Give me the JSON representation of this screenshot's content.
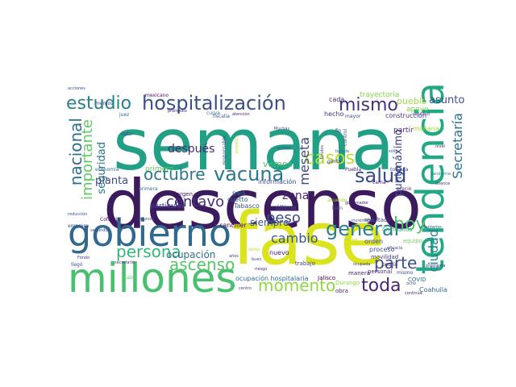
{
  "words": [
    {
      "text": "semana",
      "color": "#21a085"
    },
    {
      "text": "descenso",
      "color": "#3b1b5e"
    },
    {
      "text": "fase",
      "color": "#dbe31e"
    },
    {
      "text": "tendencia",
      "color": "#22a884"
    },
    {
      "text": "gobierno",
      "color": "#2f6a8e"
    },
    {
      "text": "millones",
      "color": "#47c16e"
    },
    {
      "text": "hospitalización",
      "color": "#3b4f8a"
    },
    {
      "text": "estudio",
      "color": "#26818e"
    },
    {
      "text": "mismo",
      "color": "#46327e"
    },
    {
      "text": "general",
      "color": "#27808e"
    },
    {
      "text": "vacuna",
      "color": "#2a788e"
    },
    {
      "text": "salud",
      "color": "#38488b"
    },
    {
      "text": "octubre",
      "color": "#2b758e"
    },
    {
      "text": "casos",
      "color": "#b8de29"
    },
    {
      "text": "hoy",
      "color": "#4ec36b"
    },
    {
      "text": "nacional",
      "color": "#2e6f8e"
    },
    {
      "text": "importante",
      "color": "#5fca61"
    },
    {
      "text": "centavo",
      "color": "#46307c"
    },
    {
      "text": "peso",
      "color": "#3e4a89"
    },
    {
      "text": "parte",
      "color": "#3c4f8a"
    },
    {
      "text": "ascenso",
      "color": "#56c566"
    },
    {
      "text": "persona",
      "color": "#35b779"
    },
    {
      "text": "momento",
      "color": "#8fd744"
    },
    {
      "text": "toda",
      "color": "#482475"
    },
    {
      "text": "cambio",
      "color": "#3a548c"
    },
    {
      "text": "Secretaría",
      "color": "#2c728e"
    },
    {
      "text": "ciudad",
      "color": "#25848e"
    },
    {
      "text": "meseta",
      "color": "#3f4788"
    },
    {
      "text": "después",
      "color": "#482979"
    },
    {
      "text": "seguridad",
      "color": "#2a768e"
    },
    {
      "text": "planta",
      "color": "#3f4889"
    },
    {
      "text": "ocupación",
      "color": "#2f6b8e"
    },
    {
      "text": "zona",
      "color": "#482878"
    },
    {
      "text": "punto",
      "color": "#3e4c8a"
    },
    {
      "text": "máximo",
      "color": "#414287"
    },
    {
      "text": "asunto",
      "color": "#3d4d8a"
    },
    {
      "text": "pueblo",
      "color": "#a0da39"
    },
    {
      "text": "siempre",
      "color": "#3b528b"
    },
    {
      "text": "trayectoria",
      "color": "#85d54a"
    },
    {
      "text": "vemos",
      "color": "#43bf71"
    },
    {
      "text": "primero",
      "color": "#65cb5e"
    },
    {
      "text": "apoyo",
      "color": "#7ad151"
    },
    {
      "text": "construcción",
      "color": "#46317e"
    },
    {
      "text": "hecho",
      "color": "#453581"
    },
    {
      "text": "partir",
      "color": "#482475"
    },
    {
      "text": "mañana",
      "color": "#a2da37"
    },
    {
      "text": "cada",
      "color": "#481b6d"
    },
    {
      "text": "particular",
      "color": "#3e4989"
    },
    {
      "text": "margen",
      "color": "#471365"
    },
    {
      "text": "país",
      "color": "#2d708e"
    },
    {
      "text": "cuetto",
      "color": "#34618d"
    },
    {
      "text": "Tabasco",
      "color": "#3a538b"
    },
    {
      "text": "última",
      "color": "#3d4e8a"
    },
    {
      "text": "nuevo",
      "color": "#481a6c"
    },
    {
      "text": "trabajo",
      "color": "#423f85"
    },
    {
      "text": "orden",
      "color": "#39568c"
    },
    {
      "text": "proceso",
      "color": "#3b528b"
    },
    {
      "text": "movilidad",
      "color": "#46337f"
    },
    {
      "text": "personal",
      "color": "#481f70"
    },
    {
      "text": "equipo",
      "color": "#75d054"
    },
    {
      "text": "resultado",
      "color": "#453882"
    },
    {
      "text": "Coahuila",
      "color": "#31678e"
    },
    {
      "text": "COVID",
      "color": "#2c718e"
    },
    {
      "text": "Durango",
      "color": "#8ed645"
    },
    {
      "text": "obra",
      "color": "#472d7b"
    },
    {
      "text": "manera",
      "color": "#482475"
    },
    {
      "text": "ocupación hospitalaria",
      "color": "#2e6e8e"
    },
    {
      "text": "Jalisco",
      "color": "#440154"
    },
    {
      "text": "canciller",
      "color": "#440154"
    },
    {
      "text": "información",
      "color": "#3e4c8a"
    },
    {
      "text": "mexicano",
      "color": "#471063"
    },
    {
      "text": "juez",
      "color": "#31678e"
    },
    {
      "text": "memos",
      "color": "#3f4788"
    },
    {
      "text": "promedio",
      "color": "#482878"
    },
    {
      "text": "curva",
      "color": "#2a788e"
    },
    {
      "text": "fiscalía",
      "color": "#3b528b"
    },
    {
      "text": "atención",
      "color": "#482475"
    },
    {
      "text": "dato",
      "color": "#3e4a89"
    },
    {
      "text": "empresa",
      "color": "#3f4889"
    },
    {
      "text": "llegó",
      "color": "#3a548c"
    },
    {
      "text": "cabo",
      "color": "#5ac864"
    },
    {
      "text": "secretario",
      "color": "#46337f"
    },
    {
      "text": "primera",
      "color": "#31688e"
    },
    {
      "text": "Cofepris",
      "color": "#450559"
    },
    {
      "text": "reducción",
      "color": "#3a548c"
    },
    {
      "text": "economía",
      "color": "#2d718e"
    },
    {
      "text": "Chihuahua",
      "color": "#35b779"
    },
    {
      "text": "cama",
      "color": "#48186a"
    },
    {
      "text": "Puebla",
      "color": "#482374"
    },
    {
      "text": "gente",
      "color": "#3f4788"
    },
    {
      "text": "bajada",
      "color": "#2c738e"
    },
    {
      "text": "control",
      "color": "#3b528b"
    },
    {
      "text": "todavía",
      "color": "#3e4a89"
    },
    {
      "text": "avance",
      "color": "#46327e"
    },
    {
      "text": "precio",
      "color": "#482979"
    },
    {
      "text": "fin",
      "color": "#39568c"
    },
    {
      "text": "bien",
      "color": "#3a548c"
    },
    {
      "text": "Muchas",
      "color": "#3f4889"
    },
    {
      "text": "doctor",
      "color": "#b5de2b"
    },
    {
      "text": "sido",
      "color": "#c8e020"
    },
    {
      "text": "ocupada",
      "color": "#433e85"
    },
    {
      "text": "podría",
      "color": "#471365"
    },
    {
      "text": "acciones",
      "color": "#3b528b"
    },
    {
      "text": "mayor",
      "color": "#3e4989"
    },
    {
      "text": "riesgo",
      "color": "#46307c"
    },
    {
      "text": "buen",
      "color": "#3f4788"
    },
    {
      "text": "centro",
      "color": "#404688"
    },
    {
      "text": "años",
      "color": "#453581"
    },
    {
      "text": "delito",
      "color": "#b8de29"
    },
    {
      "text": "ocho",
      "color": "#3b528b"
    },
    {
      "text": "mismo",
      "color": "#3f4889"
    },
    {
      "text": "gobernador",
      "color": "#48186a"
    },
    {
      "text": "responsable",
      "color": "#3e4c8a"
    },
    {
      "text": "acuerdo",
      "color": "#a8db34"
    },
    {
      "text": "Unidos",
      "color": "#3d4e8a"
    },
    {
      "text": "continúa",
      "color": "#482979"
    },
    {
      "text": "eficacia",
      "color": "#3f4889"
    },
    {
      "text": "voluntarios",
      "color": "#3a548c"
    },
    {
      "text": "incremento",
      "color": "#3b528b"
    },
    {
      "text": "programa",
      "color": "#46327e"
    },
    {
      "text": "segundo",
      "color": "#3e4a89"
    },
    {
      "text": "primer",
      "color": "#3a548c"
    },
    {
      "text": "sólo",
      "color": "#3b528b"
    },
    {
      "text": "pandemia",
      "color": "#25848e"
    },
    {
      "text": "proyecto",
      "color": "#b5de2b"
    },
    {
      "text": "nivel",
      "color": "#482475"
    },
    {
      "text": "solicitud",
      "color": "#3f4889"
    },
    {
      "text": "recursos",
      "color": "#3e4a89"
    },
    {
      "text": "Fondo",
      "color": "#46337f"
    }
  ]
}
